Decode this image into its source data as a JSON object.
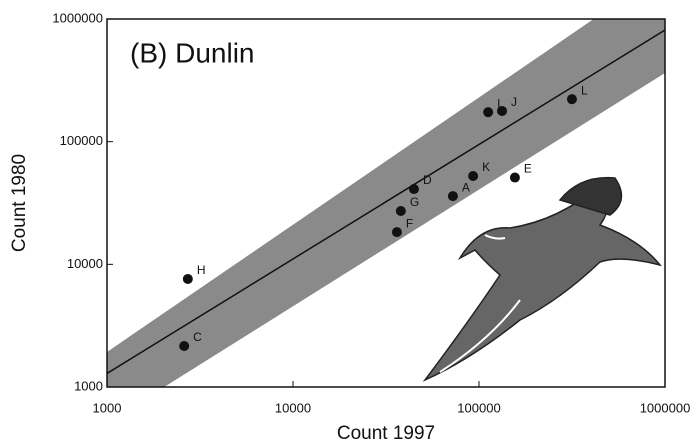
{
  "chart_data": {
    "type": "scatter",
    "title": "(B) Dunlin",
    "x_label": "Count 1997",
    "y_label": "Count 1980",
    "log_x": true,
    "log_y": true,
    "xlim": [
      1000,
      1000000
    ],
    "ylim": [
      1000,
      1000000
    ],
    "xticks": [
      1000,
      10000,
      100000,
      1000000
    ],
    "yticks": [
      1000,
      10000,
      100000,
      1000000
    ],
    "series": [
      {
        "color": "#111111",
        "labels": [
          "C",
          "H",
          "F",
          "G",
          "D",
          "A",
          "K",
          "E",
          "I",
          "J",
          "L"
        ],
        "x": [
          2600,
          2720,
          36200,
          38000,
          44700,
          72400,
          93000,
          156000,
          112000,
          133000,
          316000
        ],
        "values": [
          2160,
          7600,
          18300,
          27200,
          41100,
          36000,
          52500,
          51000,
          174000,
          178000,
          222000
        ]
      }
    ],
    "fit_line": {
      "x": [
        1000,
        1000000
      ],
      "y": [
        1290,
        813000
      ],
      "color": "#111111"
    },
    "band": {
      "x": [
        1000,
        1000000
      ],
      "upper": [
        1930,
        2500000
      ],
      "lower": [
        510,
        363000
      ],
      "color": "#8a8a8a"
    }
  }
}
